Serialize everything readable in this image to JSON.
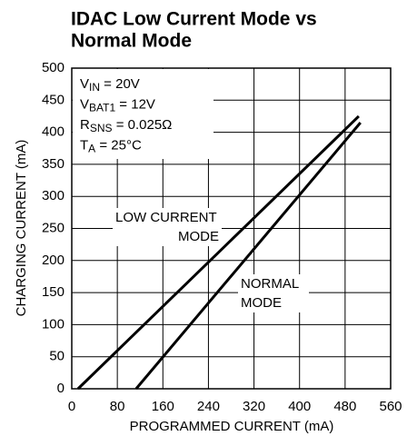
{
  "chart_data": {
    "type": "line",
    "title": [
      "IDAC Low Current Mode vs",
      "Normal Mode"
    ],
    "x_label": "PROGRAMMED CURRENT (mA)",
    "y_label": "CHARGING CURRENT (mA)",
    "xlim": [
      0,
      560
    ],
    "xticks": [
      0,
      80,
      160,
      240,
      320,
      400,
      480,
      560
    ],
    "ylim": [
      0,
      500
    ],
    "yticks": [
      0,
      50,
      100,
      150,
      200,
      250,
      300,
      350,
      400,
      450,
      500
    ],
    "grid": true,
    "conditions": [
      {
        "main": "V",
        "sub": "IN",
        "rest": " = 20V"
      },
      {
        "main": "V",
        "sub": "BAT1",
        "rest": " = 12V"
      },
      {
        "main": "R",
        "sub": "SNS",
        "rest": " = 0.025Ω"
      },
      {
        "main": "T",
        "sub": "A",
        "rest": " = 25°C"
      }
    ],
    "series": [
      {
        "name": [
          "LOW CURRENT",
          "MODE"
        ],
        "color": "#000000",
        "x": [
          11,
          504
        ],
        "values": [
          0,
          425
        ]
      },
      {
        "name": [
          "NORMAL",
          "MODE"
        ],
        "color": "#000000",
        "x": [
          113,
          507
        ],
        "values": [
          0,
          415
        ]
      }
    ]
  }
}
